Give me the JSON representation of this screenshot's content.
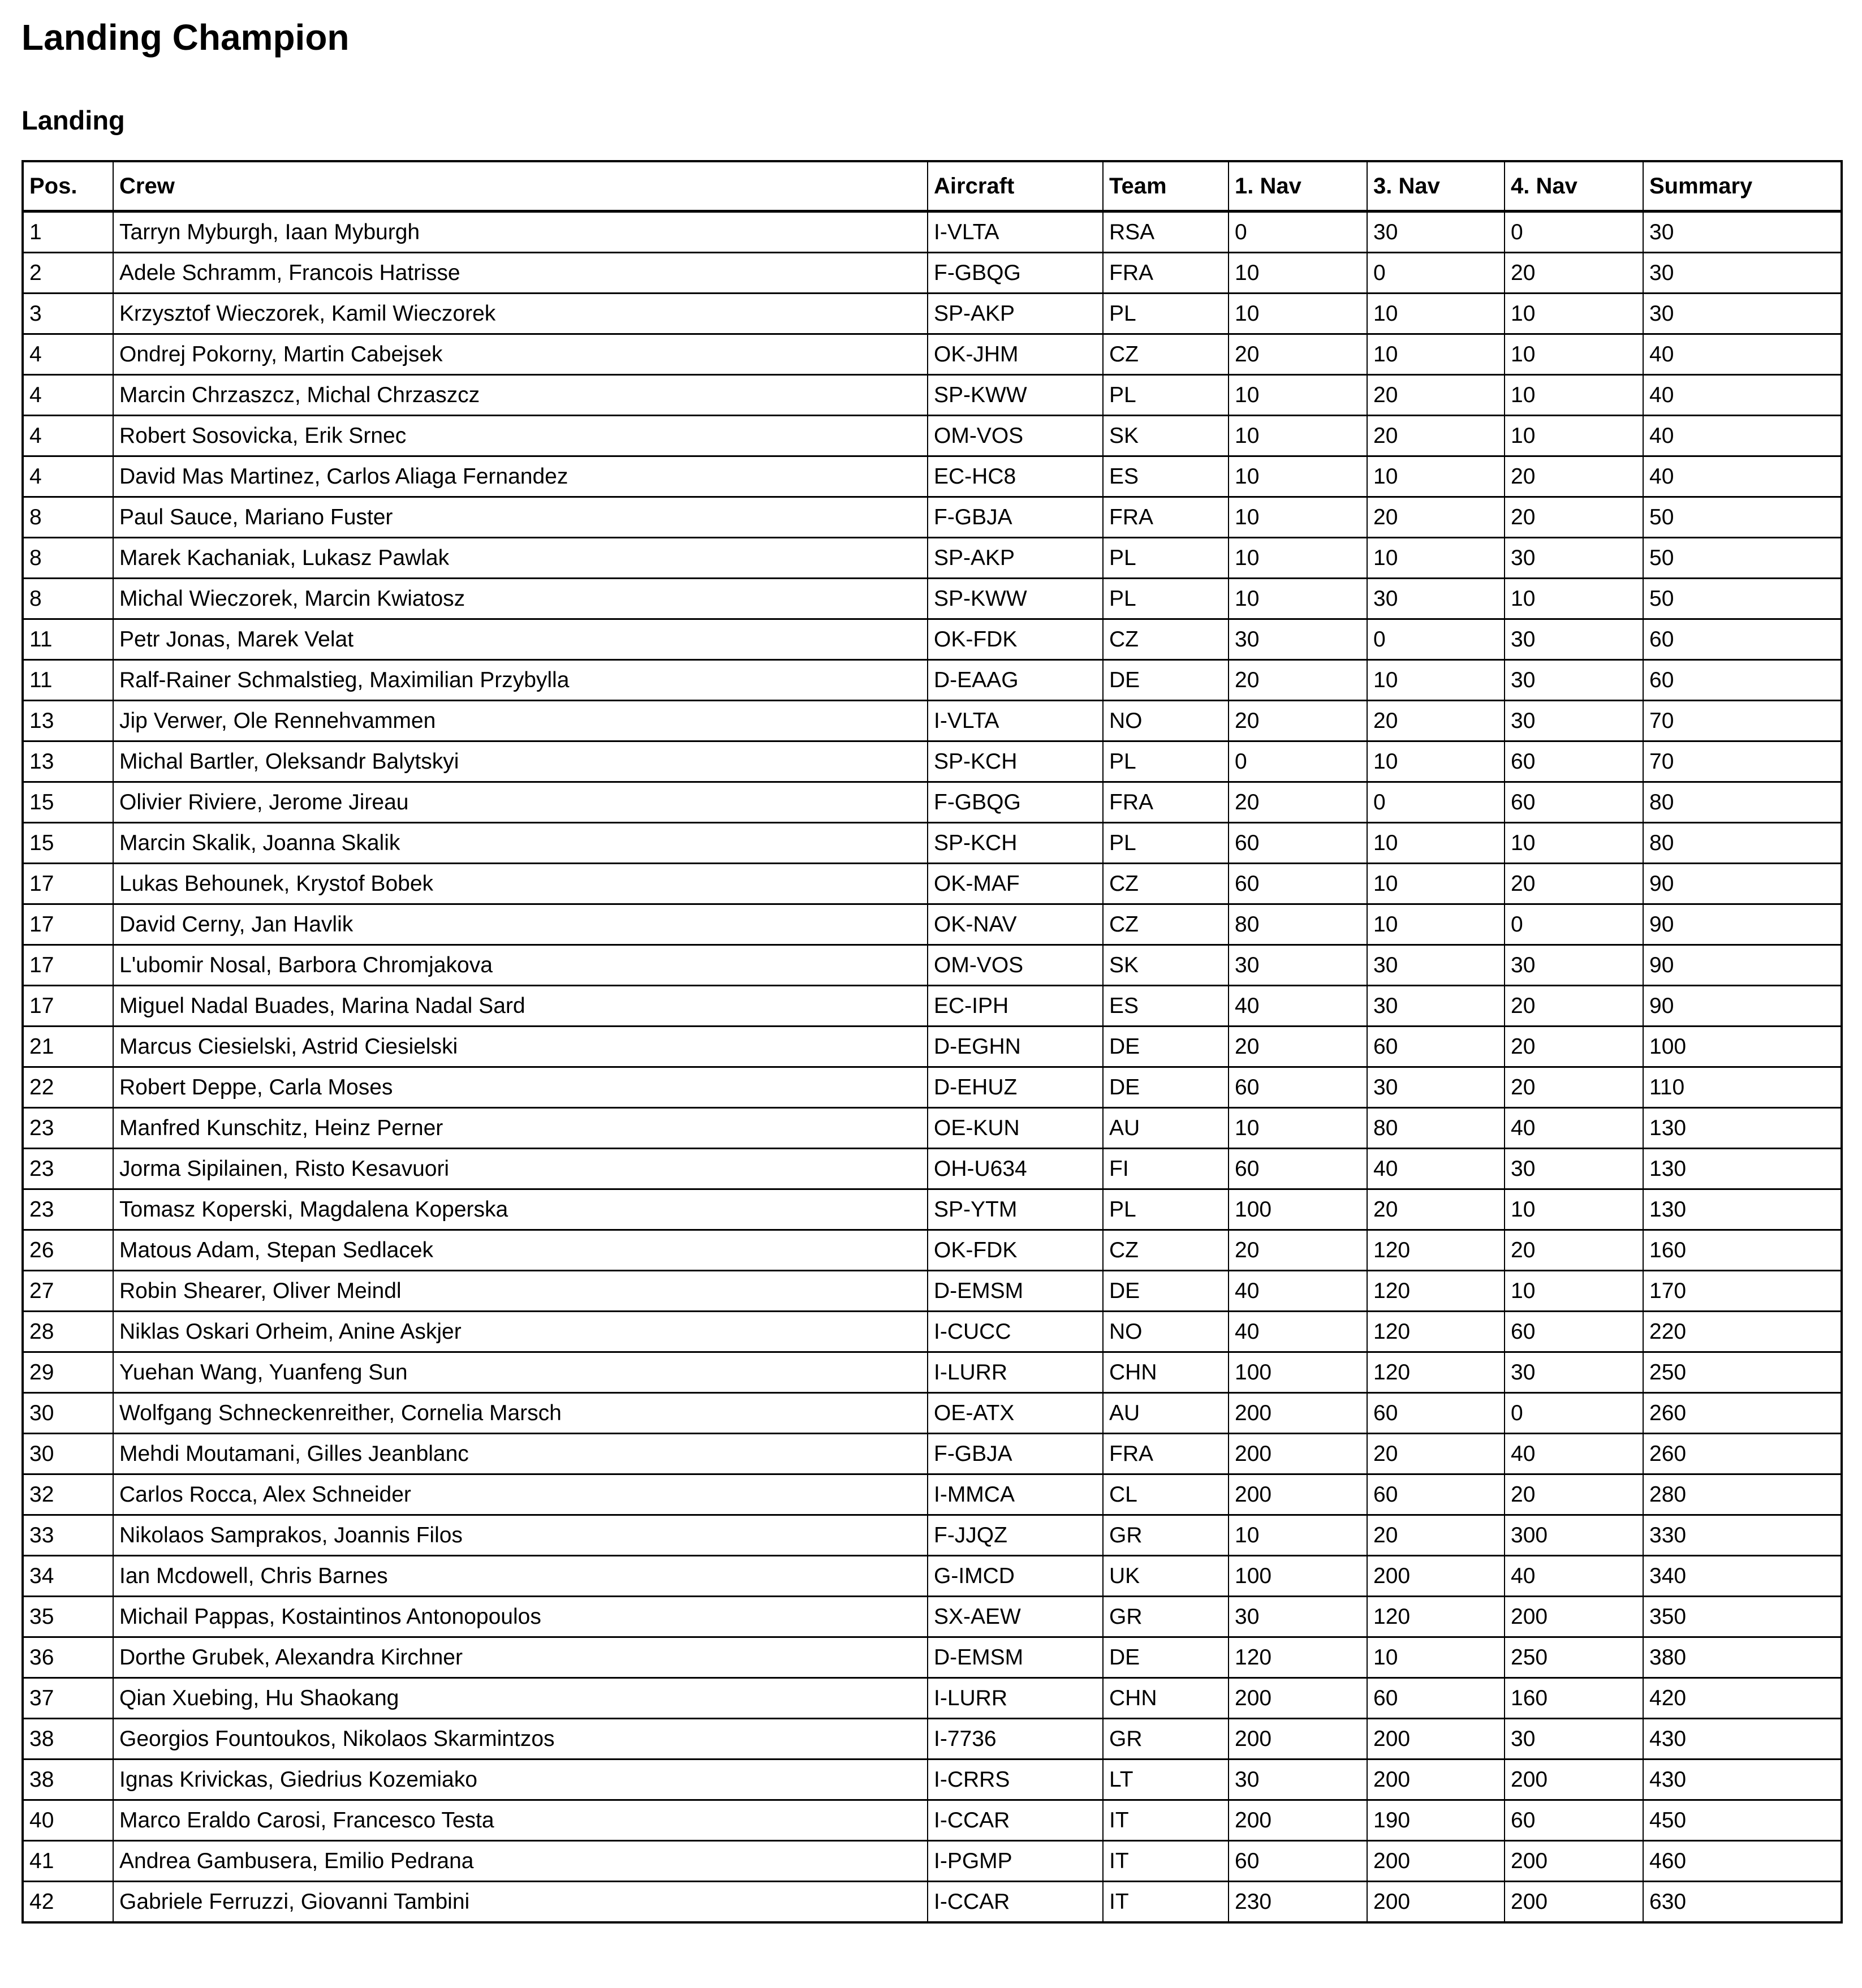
{
  "page": {
    "title": "Landing Champion",
    "section_title": "Landing"
  },
  "table": {
    "columns": [
      "Pos.",
      "Crew",
      "Aircraft",
      "Team",
      "1. Nav",
      "3. Nav",
      "4. Nav",
      "Summary"
    ],
    "rows": [
      [
        "1",
        "Tarryn Myburgh, Iaan Myburgh",
        "I-VLTA",
        "RSA",
        "0",
        "30",
        "0",
        "30"
      ],
      [
        "2",
        "Adele Schramm, Francois Hatrisse",
        "F-GBQG",
        "FRA",
        "10",
        "0",
        "20",
        "30"
      ],
      [
        "3",
        "Krzysztof Wieczorek, Kamil Wieczorek",
        "SP-AKP",
        "PL",
        "10",
        "10",
        "10",
        "30"
      ],
      [
        "4",
        "Ondrej Pokorny, Martin Cabejsek",
        "OK-JHM",
        "CZ",
        "20",
        "10",
        "10",
        "40"
      ],
      [
        "4",
        "Marcin Chrzaszcz, Michal Chrzaszcz",
        "SP-KWW",
        "PL",
        "10",
        "20",
        "10",
        "40"
      ],
      [
        "4",
        "Robert Sosovicka, Erik Srnec",
        "OM-VOS",
        "SK",
        "10",
        "20",
        "10",
        "40"
      ],
      [
        "4",
        "David Mas Martinez, Carlos Aliaga Fernandez",
        "EC-HC8",
        "ES",
        "10",
        "10",
        "20",
        "40"
      ],
      [
        "8",
        "Paul Sauce, Mariano Fuster",
        "F-GBJA",
        "FRA",
        "10",
        "20",
        "20",
        "50"
      ],
      [
        "8",
        "Marek Kachaniak, Lukasz Pawlak",
        "SP-AKP",
        "PL",
        "10",
        "10",
        "30",
        "50"
      ],
      [
        "8",
        "Michal Wieczorek, Marcin Kwiatosz",
        "SP-KWW",
        "PL",
        "10",
        "30",
        "10",
        "50"
      ],
      [
        "11",
        "Petr Jonas, Marek Velat",
        "OK-FDK",
        "CZ",
        "30",
        "0",
        "30",
        "60"
      ],
      [
        "11",
        "Ralf-Rainer Schmalstieg, Maximilian Przybylla",
        "D-EAAG",
        "DE",
        "20",
        "10",
        "30",
        "60"
      ],
      [
        "13",
        "Jip Verwer, Ole Rennehvammen",
        "I-VLTA",
        "NO",
        "20",
        "20",
        "30",
        "70"
      ],
      [
        "13",
        "Michal Bartler, Oleksandr Balytskyi",
        "SP-KCH",
        "PL",
        "0",
        "10",
        "60",
        "70"
      ],
      [
        "15",
        "Olivier Riviere, Jerome Jireau",
        "F-GBQG",
        "FRA",
        "20",
        "0",
        "60",
        "80"
      ],
      [
        "15",
        "Marcin Skalik, Joanna Skalik",
        "SP-KCH",
        "PL",
        "60",
        "10",
        "10",
        "80"
      ],
      [
        "17",
        "Lukas Behounek, Krystof Bobek",
        "OK-MAF",
        "CZ",
        "60",
        "10",
        "20",
        "90"
      ],
      [
        "17",
        "David Cerny, Jan Havlik",
        "OK-NAV",
        "CZ",
        "80",
        "10",
        "0",
        "90"
      ],
      [
        "17",
        "L'ubomir Nosal, Barbora Chromjakova",
        "OM-VOS",
        "SK",
        "30",
        "30",
        "30",
        "90"
      ],
      [
        "17",
        "Miguel Nadal Buades, Marina Nadal Sard",
        "EC-IPH",
        "ES",
        "40",
        "30",
        "20",
        "90"
      ],
      [
        "21",
        "Marcus Ciesielski, Astrid Ciesielski",
        "D-EGHN",
        "DE",
        "20",
        "60",
        "20",
        "100"
      ],
      [
        "22",
        "Robert Deppe, Carla Moses",
        "D-EHUZ",
        "DE",
        "60",
        "30",
        "20",
        "110"
      ],
      [
        "23",
        "Manfred Kunschitz, Heinz Perner",
        "OE-KUN",
        "AU",
        "10",
        "80",
        "40",
        "130"
      ],
      [
        "23",
        "Jorma Sipilainen, Risto Kesavuori",
        "OH-U634",
        "FI",
        "60",
        "40",
        "30",
        "130"
      ],
      [
        "23",
        "Tomasz Koperski, Magdalena Koperska",
        "SP-YTM",
        "PL",
        "100",
        "20",
        "10",
        "130"
      ],
      [
        "26",
        "Matous Adam, Stepan Sedlacek",
        "OK-FDK",
        "CZ",
        "20",
        "120",
        "20",
        "160"
      ],
      [
        "27",
        "Robin Shearer, Oliver Meindl",
        "D-EMSM",
        "DE",
        "40",
        "120",
        "10",
        "170"
      ],
      [
        "28",
        "Niklas Oskari Orheim, Anine Askjer",
        "I-CUCC",
        "NO",
        "40",
        "120",
        "60",
        "220"
      ],
      [
        "29",
        "Yuehan Wang, Yuanfeng Sun",
        "I-LURR",
        "CHN",
        "100",
        "120",
        "30",
        "250"
      ],
      [
        "30",
        "Wolfgang Schneckenreither, Cornelia Marsch",
        "OE-ATX",
        "AU",
        "200",
        "60",
        "0",
        "260"
      ],
      [
        "30",
        "Mehdi Moutamani, Gilles Jeanblanc",
        "F-GBJA",
        "FRA",
        "200",
        "20",
        "40",
        "260"
      ],
      [
        "32",
        "Carlos Rocca, Alex Schneider",
        "I-MMCA",
        "CL",
        "200",
        "60",
        "20",
        "280"
      ],
      [
        "33",
        "Nikolaos Samprakos, Joannis Filos",
        "F-JJQZ",
        "GR",
        "10",
        "20",
        "300",
        "330"
      ],
      [
        "34",
        "Ian Mcdowell, Chris Barnes",
        "G-IMCD",
        "UK",
        "100",
        "200",
        "40",
        "340"
      ],
      [
        "35",
        "Michail Pappas, Kostaintinos Antonopoulos",
        "SX-AEW",
        "GR",
        "30",
        "120",
        "200",
        "350"
      ],
      [
        "36",
        "Dorthe Grubek, Alexandra Kirchner",
        "D-EMSM",
        "DE",
        "120",
        "10",
        "250",
        "380"
      ],
      [
        "37",
        "Qian Xuebing, Hu Shaokang",
        "I-LURR",
        "CHN",
        "200",
        "60",
        "160",
        "420"
      ],
      [
        "38",
        "Georgios Fountoukos, Nikolaos Skarmintzos",
        "I-7736",
        "GR",
        "200",
        "200",
        "30",
        "430"
      ],
      [
        "38",
        "Ignas Krivickas, Giedrius Kozemiako",
        "I-CRRS",
        "LT",
        "30",
        "200",
        "200",
        "430"
      ],
      [
        "40",
        "Marco Eraldo Carosi, Francesco Testa",
        "I-CCAR",
        "IT",
        "200",
        "190",
        "60",
        "450"
      ],
      [
        "41",
        "Andrea Gambusera, Emilio Pedrana",
        "I-PGMP",
        "IT",
        "60",
        "200",
        "200",
        "460"
      ],
      [
        "42",
        "Gabriele Ferruzzi, Giovanni Tambini",
        "I-CCAR",
        "IT",
        "230",
        "200",
        "200",
        "630"
      ]
    ]
  }
}
